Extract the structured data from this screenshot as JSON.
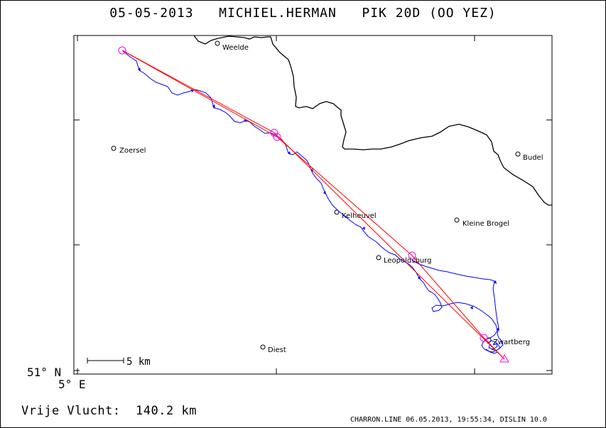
{
  "header": {
    "date": "05-05-2013",
    "pilot": "MICHIEL.HERMAN",
    "glider": "PIK 20D (OO YEZ)"
  },
  "map": {
    "latitude_label": "51° N",
    "longitude_label": "5° E",
    "scale_label": "5 km",
    "cities": [
      {
        "name": "Weelde"
      },
      {
        "name": "Zoersel"
      },
      {
        "name": "Budel"
      },
      {
        "name": "Kelheuvel"
      },
      {
        "name": "Kleine Brogel"
      },
      {
        "name": "Leopoldsburg"
      },
      {
        "name": "Diest"
      },
      {
        "name": "Zwartberg"
      }
    ],
    "colors": {
      "track": "#0000ff",
      "task": "#ff0000",
      "turnpoint": "#ff00ff",
      "border": "#000000"
    }
  },
  "summary": {
    "label": "Vrije Vlucht:",
    "distance": "140.2 km"
  },
  "footer": {
    "text": "CHARRON.LINE 06.05.2013, 19:55:34, DISLIN 10.0"
  }
}
